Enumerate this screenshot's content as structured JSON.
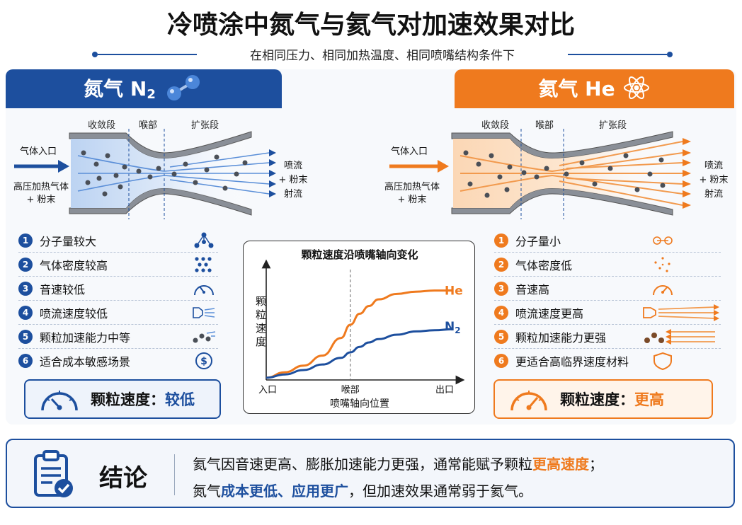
{
  "title": "冷喷涂中氮气与氦气对加速效果对比",
  "subtitle": "在相同压力、相同加热温度、相同喷嘴结构条件下",
  "colors": {
    "n2": "#1d4f9e",
    "he": "#ef7a1e"
  },
  "n2": {
    "header_main": "氮气 N",
    "header_sub": "2",
    "icon": "molecule-n2-icon",
    "sections": [
      "收敛段",
      "喉部",
      "扩张段"
    ],
    "inlet_label": "气体入口",
    "feed_label_1": "高压加热气体",
    "feed_label_2": "+ 粉末",
    "outlet_1": "喷流",
    "outlet_2": "+ 粉末",
    "outlet_3": "射流",
    "items": [
      {
        "num": "1",
        "text": "分子量较大",
        "icon": "molecule-icon"
      },
      {
        "num": "2",
        "text": "气体密度较高",
        "icon": "dense-dots-icon"
      },
      {
        "num": "3",
        "text": "音速较低",
        "icon": "gauge-low-icon"
      },
      {
        "num": "4",
        "text": "喷流速度较低",
        "icon": "jet-slow-icon"
      },
      {
        "num": "5",
        "text": "颗粒加速能力中等",
        "icon": "particles-icon"
      },
      {
        "num": "6",
        "text": "适合成本敏感场景",
        "icon": "dollar-icon"
      }
    ],
    "speed_label": "颗粒速度：",
    "speed_value": "较低"
  },
  "he": {
    "header": "氦气 He",
    "icon": "atom-icon",
    "sections": [
      "收敛段",
      "喉部",
      "扩张段"
    ],
    "inlet_label": "气体入口",
    "feed_label_1": "高压加热气体",
    "feed_label_2": "+ 粉末",
    "outlet_1": "喷流",
    "outlet_2": "+ 粉末",
    "outlet_3": "射流",
    "items": [
      {
        "num": "1",
        "text": "分子量小",
        "icon": "small-molecule-icon"
      },
      {
        "num": "2",
        "text": "气体密度低",
        "icon": "sparse-dots-icon"
      },
      {
        "num": "3",
        "text": "音速高",
        "icon": "gauge-high-icon"
      },
      {
        "num": "4",
        "text": "喷流速度更高",
        "icon": "jet-fast-icon"
      },
      {
        "num": "5",
        "text": "颗粒加速能力更强",
        "icon": "particles-fast-icon"
      },
      {
        "num": "6",
        "text": "更适合高临界速度材料",
        "icon": "shield-icon"
      }
    ],
    "speed_label": "颗粒速度：",
    "speed_value": "更高"
  },
  "chart_data": {
    "type": "line",
    "title": "颗粒速度沿喷嘴轴向变化",
    "xlabel": "喷嘴轴向位置",
    "ylabel": "颗粒速度",
    "x_ticks": [
      "入口",
      "喉部",
      "出口"
    ],
    "x": [
      0,
      0.1,
      0.2,
      0.3,
      0.4,
      0.45,
      0.5,
      0.55,
      0.6,
      0.7,
      0.8,
      0.9,
      1.0
    ],
    "series": [
      {
        "name": "He",
        "values": [
          0.02,
          0.07,
          0.13,
          0.22,
          0.38,
          0.5,
          0.6,
          0.67,
          0.73,
          0.78,
          0.8,
          0.81,
          0.81
        ]
      },
      {
        "name": "N",
        "values": [
          0.02,
          0.05,
          0.09,
          0.14,
          0.2,
          0.25,
          0.3,
          0.34,
          0.37,
          0.41,
          0.44,
          0.45,
          0.46
        ]
      }
    ],
    "n2_label_sub": "2",
    "ylim": [
      0,
      1
    ],
    "grid": false
  },
  "conclusion": {
    "label": "结论",
    "icon": "clipboard-check-icon",
    "line1_a": "氦气因音速更高、膨胀加速能力更强，通常能赋予颗粒",
    "line1_hl": "更高速度",
    "line1_b": "；",
    "line2_a": "氮气",
    "line2_hl": "成本更低、应用更广",
    "line2_b": "，但加速效果通常弱于氦气。"
  }
}
